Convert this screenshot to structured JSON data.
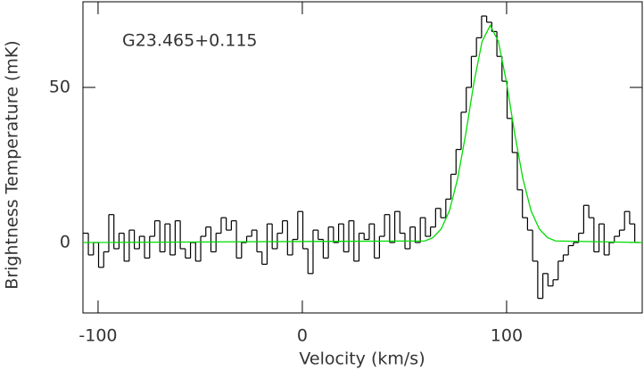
{
  "chart_data": {
    "type": "line",
    "annotation": "G23.465+0.115",
    "xlabel": "Velocity (km/s)",
    "ylabel": "Brightness Temperature (mK)",
    "xlim": [
      -107.4,
      166.4
    ],
    "ylim": [
      -22.7,
      77.6
    ],
    "xticks": [
      -100,
      0,
      100
    ],
    "yticks": [
      0,
      50
    ],
    "series": [
      {
        "color": "#000000",
        "drawstyle": "steps-mid",
        "x": [
          -106,
          -103.5,
          -101,
          -98.5,
          -96,
          -93.5,
          -91,
          -88.5,
          -86,
          -83.5,
          -81,
          -78.5,
          -76,
          -73.5,
          -71,
          -68.5,
          -66,
          -63.5,
          -61,
          -58.5,
          -56,
          -53.5,
          -51,
          -48.5,
          -46,
          -43.5,
          -41,
          -38.5,
          -36,
          -33.5,
          -31,
          -28.5,
          -26,
          -23.5,
          -21,
          -18.5,
          -16,
          -13.5,
          -11,
          -8.5,
          -6,
          -3.5,
          -1,
          1.5,
          4,
          6.5,
          9,
          11.5,
          14,
          16.5,
          19,
          21.5,
          24,
          26.5,
          29,
          31.5,
          34,
          36.5,
          39,
          41.5,
          44,
          46.5,
          49,
          51.5,
          54,
          56.5,
          59,
          61.5,
          64,
          66.5,
          69,
          71.5,
          74,
          76.5,
          79,
          81.5,
          84,
          86.5,
          89,
          91.5,
          94,
          96.5,
          99,
          101.5,
          104,
          106.5,
          109,
          111.5,
          114,
          116.5,
          119,
          121.5,
          124,
          126.5,
          129,
          131.5,
          134,
          136.5,
          139,
          141.5,
          144,
          146.5,
          149,
          151.5,
          154,
          156.5,
          159,
          161.5,
          164
        ],
        "values": [
          3,
          -4,
          0,
          -8,
          -3,
          9,
          -2,
          3,
          -6,
          4,
          -2,
          2,
          -5,
          2,
          7,
          -3,
          6,
          -4,
          7,
          -2,
          -5,
          0,
          -6,
          2,
          5,
          -3,
          3,
          8,
          4,
          7,
          -5,
          0,
          2,
          4,
          -3,
          -7,
          6,
          -2,
          3,
          7,
          -4,
          1,
          10,
          -2,
          -10,
          4,
          1,
          -5,
          5,
          0,
          6,
          -3,
          7,
          -6,
          3,
          1,
          6,
          -5,
          2,
          9,
          0,
          10,
          3,
          -2,
          5,
          0,
          8,
          2,
          5,
          11,
          8,
          14,
          22,
          30,
          42,
          50,
          60,
          66,
          73,
          71,
          68,
          60,
          52,
          40,
          29,
          17,
          8,
          4,
          -6,
          -18,
          -10,
          -14,
          -12,
          -6,
          -4,
          -1,
          0,
          3,
          12,
          8,
          -3,
          6,
          -4,
          0,
          2,
          4,
          10,
          6,
          0
        ]
      },
      {
        "color": "#00dd00",
        "drawstyle": "default",
        "x": [
          -107.4,
          60,
          64,
          68,
          72,
          76,
          80,
          84,
          88,
          92,
          96,
          100,
          104,
          108,
          112,
          116,
          120,
          124,
          166.4
        ],
        "values": [
          0,
          0.5,
          1.6,
          4.4,
          10.2,
          20.5,
          35,
          51.5,
          64.8,
          70,
          64.8,
          51.5,
          35,
          20.5,
          10.2,
          4.4,
          1.6,
          0.5,
          0
        ]
      }
    ]
  }
}
